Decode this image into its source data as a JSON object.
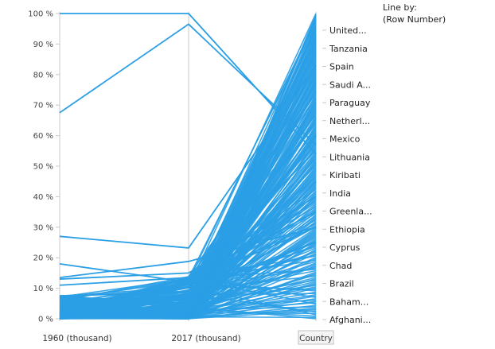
{
  "legend": {
    "title": "Line by:",
    "value": "(Row Number)"
  },
  "colors": {
    "series": "#2a9fe5",
    "axis": "#c8c8c8",
    "highlight_box": "#bfbfbf"
  },
  "chart_data": {
    "type": "line",
    "subtype": "parallel-coordinates",
    "axes": [
      "1960 (thousand)",
      "2017 (thousand)",
      "Country"
    ],
    "highlighted_axis": "Country",
    "y_ticks": [
      "0 %",
      "10 %",
      "20 %",
      "30 %",
      "40 %",
      "50 %",
      "60 %",
      "70 %",
      "80 %",
      "90 %",
      "100 %"
    ],
    "ylim": [
      0,
      100
    ],
    "country_labels": [
      "United...",
      "Tanzania",
      "Spain",
      "Saudi A...",
      "Paraguay",
      "Netherl...",
      "Mexico",
      "Lithuania",
      "Kiribati",
      "India",
      "Greenla...",
      "Ethiopia",
      "Cyprus",
      "Chad",
      "Brazil",
      "Baham...",
      "Afghani..."
    ],
    "series": [
      {
        "values": [
          100,
          100,
          54
        ]
      },
      {
        "values": [
          67.5,
          96.5,
          57
        ]
      },
      {
        "values": [
          27,
          23.2,
          83
        ]
      },
      {
        "values": [
          18,
          12,
          30
        ]
      },
      {
        "values": [
          13.5,
          18.8,
          30
        ]
      },
      {
        "values": [
          13,
          15,
          40
        ]
      },
      {
        "values": [
          11,
          13.5,
          35
        ]
      },
      {
        "values": [
          7.5,
          9,
          25
        ]
      },
      {
        "values": [
          6.5,
          4.5,
          60
        ]
      },
      {
        "values": [
          5,
          3,
          45
        ]
      }
    ],
    "dense_band": {
      "x1960_range": [
        0,
        8
      ],
      "x2017_range": [
        0,
        14
      ],
      "country_range": [
        0,
        100
      ]
    }
  }
}
